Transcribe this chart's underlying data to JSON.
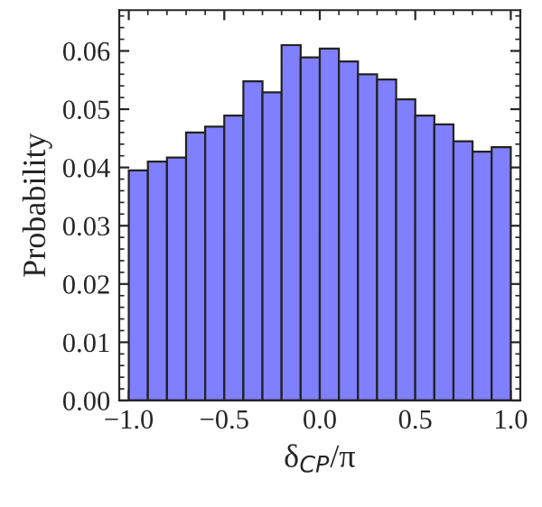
{
  "chart_data": {
    "type": "histogram",
    "xlabel": "δ$_{CP}$/π",
    "ylabel": "Probability",
    "bins": [
      -1.0,
      -0.9,
      -0.8,
      -0.7,
      -0.6,
      -0.5,
      -0.4,
      -0.3,
      -0.2,
      -0.1,
      0.0,
      0.1,
      0.2,
      0.3,
      0.4,
      0.5,
      0.6,
      0.7,
      0.8,
      0.9,
      1.0
    ],
    "values": [
      0.0395,
      0.041,
      0.0417,
      0.046,
      0.047,
      0.0489,
      0.0548,
      0.0529,
      0.061,
      0.0589,
      0.0604,
      0.0582,
      0.056,
      0.0551,
      0.0517,
      0.0489,
      0.0474,
      0.0445,
      0.0427,
      0.0435
    ],
    "color": "#8080ff",
    "xlim": [
      -1.05,
      1.05
    ],
    "ylim": [
      0,
      0.067
    ],
    "xticks": [
      {
        "value": -1.0,
        "label": "−1.0"
      },
      {
        "value": -0.5,
        "label": "−0.5"
      },
      {
        "value": 0.0,
        "label": "0.0"
      },
      {
        "value": 0.5,
        "label": "0.5"
      },
      {
        "value": 1.0,
        "label": "1.0"
      }
    ],
    "yticks": [
      {
        "value": 0.0,
        "label": "0.00"
      },
      {
        "value": 0.01,
        "label": "0.01"
      },
      {
        "value": 0.02,
        "label": "0.02"
      },
      {
        "value": 0.03,
        "label": "0.03"
      },
      {
        "value": 0.04,
        "label": "0.04"
      },
      {
        "value": 0.05,
        "label": "0.05"
      },
      {
        "value": 0.06,
        "label": "0.06"
      }
    ],
    "grid": false
  }
}
